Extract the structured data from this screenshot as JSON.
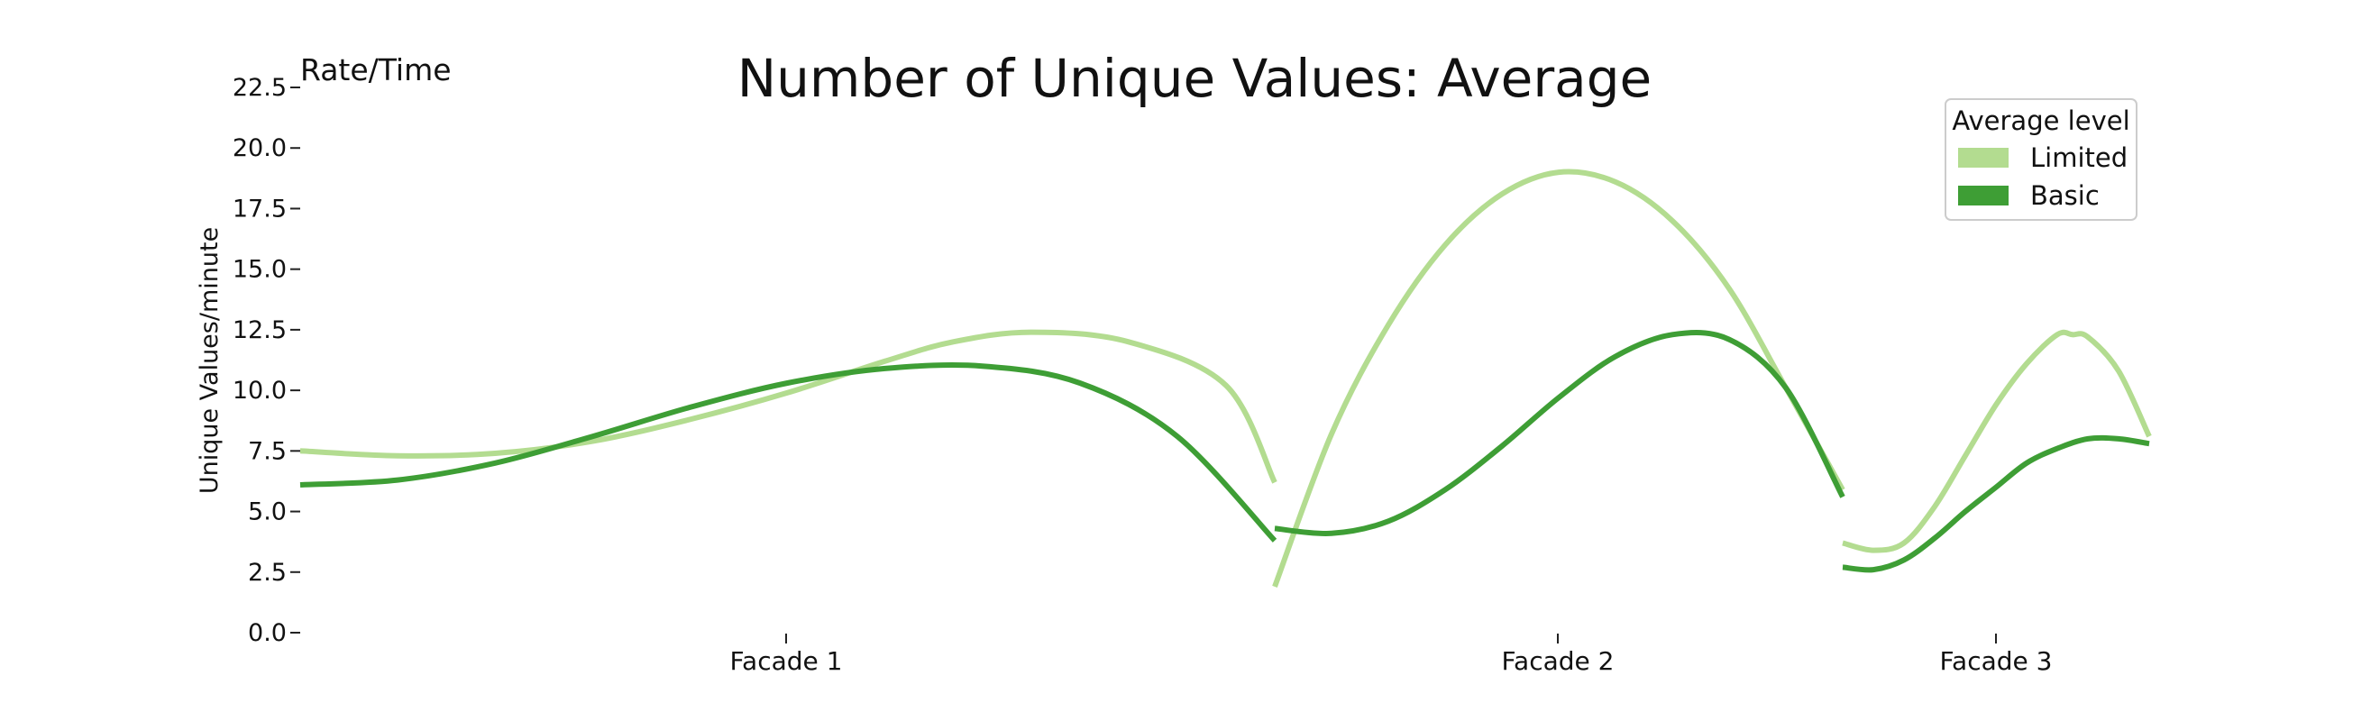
{
  "colors": {
    "limited": "#b3dc90",
    "basic": "#3e9e35"
  },
  "chart_data": {
    "type": "line",
    "title": "Number of Unique Values: Average",
    "corner_label": "Rate/Time",
    "ylabel": "Unique Values/minute",
    "xlabel": "",
    "ylim": [
      0,
      22.5
    ],
    "yticks": [
      "0.0",
      "2.5",
      "5.0",
      "7.5",
      "10.0",
      "12.5",
      "15.0",
      "17.5",
      "20.0",
      "22.5"
    ],
    "categories": [
      "Facade 1",
      "Facade 2",
      "Facade 3"
    ],
    "grid": false,
    "legend": {
      "title": "Average level",
      "placement": "top-right"
    },
    "series": [
      {
        "name": "Limited",
        "color": "#b3dc90",
        "segments": [
          {
            "category": "Facade 1",
            "x": [
              0,
              0.1,
              0.2,
              0.3,
              0.4,
              0.5,
              0.6,
              0.67,
              0.75,
              0.85,
              0.95,
              1.0
            ],
            "y": [
              7.5,
              7.3,
              7.4,
              7.9,
              8.8,
              9.9,
              11.2,
              12.0,
              12.4,
              12.0,
              10.2,
              6.2
            ]
          },
          {
            "category": "Facade 2",
            "x": [
              0,
              0.1,
              0.2,
              0.3,
              0.4,
              0.5,
              0.6,
              0.7,
              0.8,
              0.9,
              1.0
            ],
            "y": [
              1.9,
              8.2,
              12.7,
              16.0,
              18.1,
              19.0,
              18.6,
              17.0,
              14.2,
              10.1,
              5.9
            ]
          },
          {
            "category": "Facade 3",
            "x": [
              0,
              0.1,
              0.2,
              0.3,
              0.4,
              0.5,
              0.6,
              0.7,
              0.75,
              0.8,
              0.9,
              1.0
            ],
            "y": [
              3.7,
              3.4,
              3.7,
              5.2,
              7.3,
              9.4,
              11.1,
              12.3,
              12.3,
              12.2,
              10.8,
              8.1
            ]
          }
        ]
      },
      {
        "name": "Basic",
        "color": "#3e9e35",
        "segments": [
          {
            "category": "Facade 1",
            "x": [
              0,
              0.1,
              0.2,
              0.3,
              0.4,
              0.5,
              0.6,
              0.7,
              0.8,
              0.9,
              1.0
            ],
            "y": [
              6.1,
              6.3,
              7.0,
              8.1,
              9.3,
              10.3,
              10.9,
              11.0,
              10.3,
              8.1,
              3.8
            ]
          },
          {
            "category": "Facade 2",
            "x": [
              0,
              0.1,
              0.2,
              0.3,
              0.4,
              0.5,
              0.6,
              0.7,
              0.8,
              0.9,
              1.0
            ],
            "y": [
              4.3,
              4.1,
              4.6,
              5.9,
              7.7,
              9.7,
              11.4,
              12.3,
              12.1,
              10.1,
              5.6
            ]
          },
          {
            "category": "Facade 3",
            "x": [
              0,
              0.1,
              0.2,
              0.3,
              0.4,
              0.5,
              0.6,
              0.7,
              0.8,
              0.9,
              1.0
            ],
            "y": [
              2.7,
              2.6,
              3.0,
              3.9,
              5.0,
              6.0,
              7.0,
              7.6,
              8.0,
              8.0,
              7.8
            ]
          }
        ]
      }
    ]
  }
}
